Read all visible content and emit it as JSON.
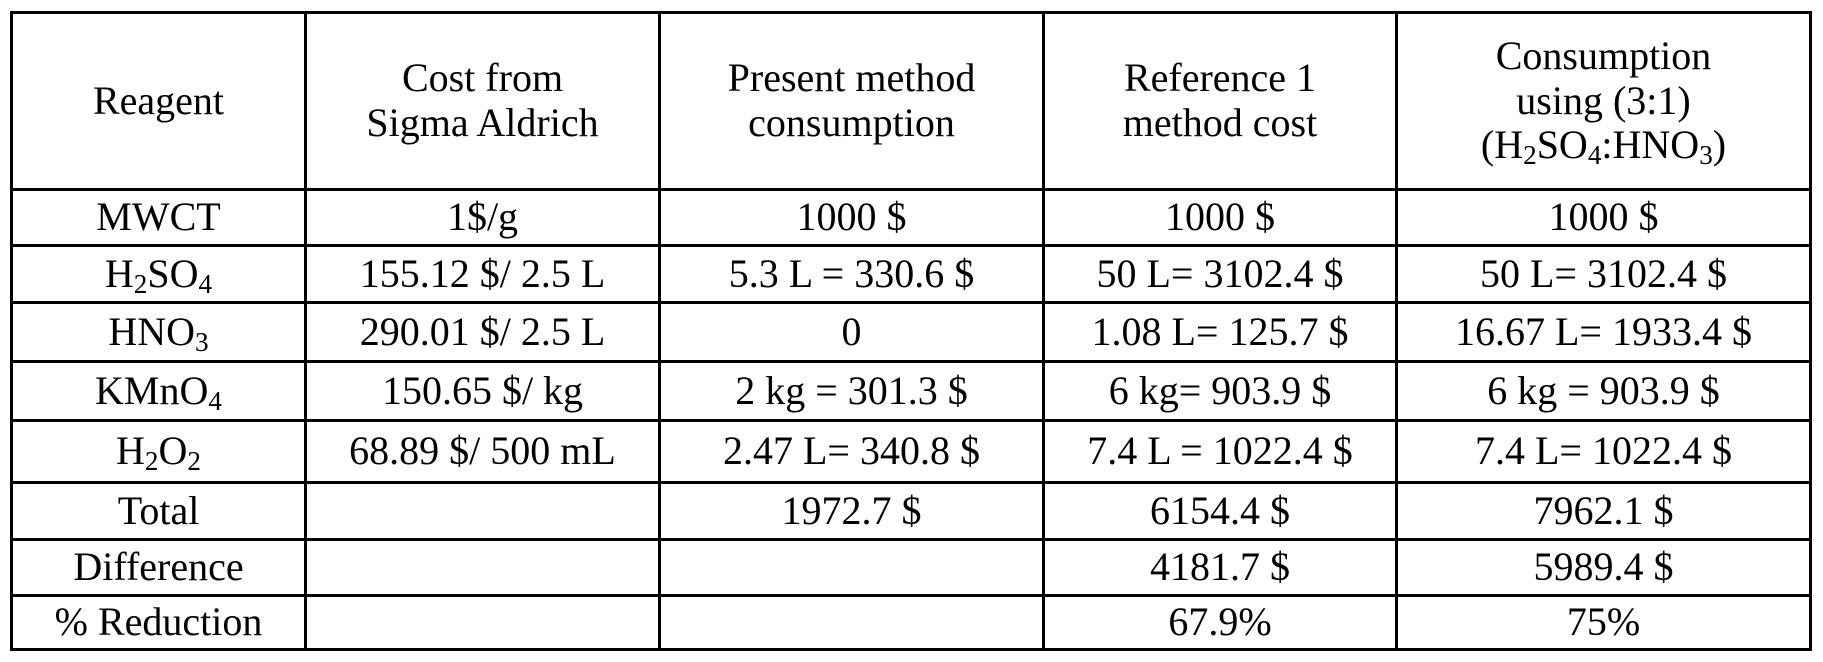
{
  "table": {
    "headers": [
      {
        "lines": [
          "Reagent"
        ]
      },
      {
        "lines": [
          "Cost from",
          "Sigma Aldrich"
        ]
      },
      {
        "lines": [
          "Present method",
          "consumption"
        ]
      },
      {
        "lines": [
          "Reference 1",
          "method cost"
        ]
      },
      {
        "lines": [
          "Consumption",
          "using (3:1)"
        ],
        "formula": {
          "open": "(H",
          "s1": "2",
          "mid1": "SO",
          "s2": "4",
          "mid2": ":HNO",
          "s3": "3",
          "close": ")"
        }
      }
    ],
    "rows": [
      {
        "reagent": {
          "base": "MWCT"
        },
        "cost": "1$/g",
        "present": "1000 $",
        "reference": "1000 $",
        "consumption": "1000 $"
      },
      {
        "reagent": {
          "base": "H",
          "sub1": "2",
          "mid": "SO",
          "sub2": "4"
        },
        "cost": "155.12 $/ 2.5 L",
        "present": "5.3 L = 330.6 $",
        "reference": "50 L= 3102.4 $",
        "consumption": "50 L= 3102.4 $"
      },
      {
        "reagent": {
          "base": "HNO",
          "sub1": "3"
        },
        "cost": "290.01 $/ 2.5 L",
        "present": "0",
        "reference": "1.08 L= 125.7 $",
        "consumption": "16.67 L= 1933.4 $"
      },
      {
        "reagent": {
          "base": "KMnO",
          "sub1": "4"
        },
        "cost": "150.65 $/ kg",
        "present": "2 kg = 301.3 $",
        "reference": "6 kg= 903.9 $",
        "consumption": "6 kg = 903.9 $"
      },
      {
        "reagent": {
          "base": "H",
          "sub1": "2",
          "mid": "O",
          "sub2": "2"
        },
        "cost": "68.89 $/ 500 mL",
        "present": "2.47 L= 340.8 $",
        "reference": "7.4 L = 1022.4 $",
        "consumption": "7.4 L= 1022.4 $"
      },
      {
        "reagent": {
          "base": "Total"
        },
        "cost": "",
        "present": "1972.7 $",
        "reference": "6154.4 $",
        "consumption": "7962.1 $"
      },
      {
        "reagent": {
          "base": "Difference"
        },
        "cost": "",
        "present": "",
        "reference": "4181.7 $",
        "consumption": "5989.4 $"
      },
      {
        "reagent": {
          "base": "% Reduction"
        },
        "cost": "",
        "present": "",
        "reference": "67.9%",
        "consumption": "75%"
      }
    ]
  }
}
